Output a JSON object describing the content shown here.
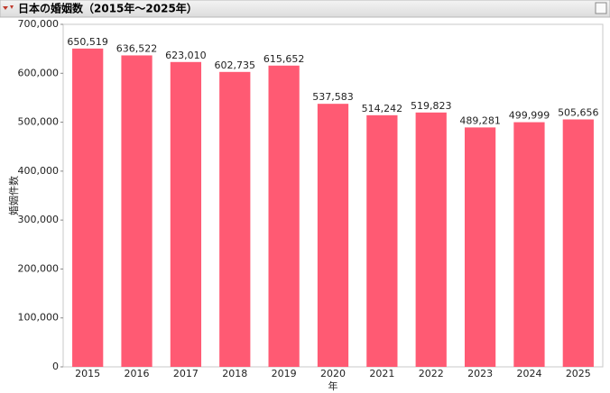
{
  "chart_data": {
    "type": "bar",
    "title": "日本の婚姻数（2015年～2025年）",
    "x_label": "年",
    "y_label": "婚姻件数",
    "categories": [
      "2015",
      "2016",
      "2017",
      "2018",
      "2019",
      "2020",
      "2021",
      "2022",
      "2023",
      "2024",
      "2025"
    ],
    "values": [
      650519,
      636522,
      623010,
      602735,
      615652,
      537583,
      514242,
      519823,
      489281,
      499999,
      505656
    ],
    "value_labels": [
      "650,519",
      "636,522",
      "623,010",
      "602,735",
      "615,652",
      "537,583",
      "514,242",
      "519,823",
      "489,281",
      "499,999",
      "505,656"
    ],
    "color": "#ff5a73",
    "ylim": [
      0,
      700000
    ],
    "yticks": [
      0,
      {
        "value": 100000,
        "label": "100,000"
      },
      {
        "value": 200000,
        "label": "200,000"
      },
      {
        "value": 300000,
        "label": "300,000"
      },
      {
        "value": 400000,
        "label": "400,000"
      },
      {
        "value": 500000,
        "label": "500,000"
      },
      {
        "value": 600000,
        "label": "600,000"
      },
      {
        "value": 700000,
        "label": "700,000"
      }
    ],
    "grid": false
  }
}
